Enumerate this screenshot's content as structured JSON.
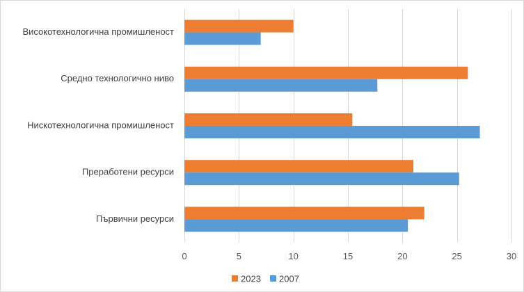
{
  "chart_data": {
    "type": "bar",
    "orientation": "horizontal",
    "categories": [
      "Високотехнологична промишленост",
      "Средно технологично ниво",
      "Нискотехнологична промишленост",
      "Преработени ресурси",
      "Първични ресурси"
    ],
    "series": [
      {
        "name": "2023",
        "color": "#ed7d31",
        "values": [
          10,
          26,
          15.4,
          21,
          22
        ]
      },
      {
        "name": "2007",
        "color": "#5b9bd5",
        "values": [
          7,
          17.7,
          27.1,
          25.2,
          20.5
        ]
      }
    ],
    "xlim": [
      0,
      30
    ],
    "xticks": [
      0,
      5,
      10,
      15,
      20,
      25,
      30
    ],
    "grid": "vertical",
    "legend": "bottom",
    "title": "",
    "xlabel": "",
    "ylabel": ""
  }
}
